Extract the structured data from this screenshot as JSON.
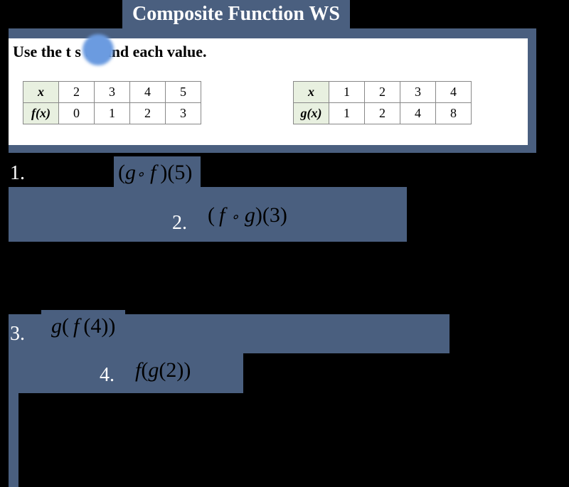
{
  "title": "Composite Function WS",
  "instruction": "Use the t        s to find each value.",
  "colors": {
    "bar_bg": "#4a5f7f",
    "page_bg": "#000000",
    "card_bg": "#ffffff",
    "table_header_bg": "#e8f0e0",
    "laser_pointer": "#6b9be0"
  },
  "table_f": {
    "row_header_x": "x",
    "row_header_fx": "f(x)",
    "x": [
      "2",
      "3",
      "4",
      "5"
    ],
    "fx": [
      "0",
      "1",
      "2",
      "3"
    ]
  },
  "table_g": {
    "row_header_x": "x",
    "row_header_gx": "g(x)",
    "x": [
      "1",
      "2",
      "3",
      "4"
    ],
    "gx": [
      "1",
      "2",
      "4",
      "8"
    ]
  },
  "questions": [
    {
      "num": "1.",
      "expr_html": "(g∘ f)(5)"
    },
    {
      "num": "2.",
      "expr_html": "( f ∘ g)(3)"
    },
    {
      "num": "3.",
      "expr_html": "g( f(4))"
    },
    {
      "num": "4.",
      "expr_html": "f(g(2))"
    }
  ]
}
